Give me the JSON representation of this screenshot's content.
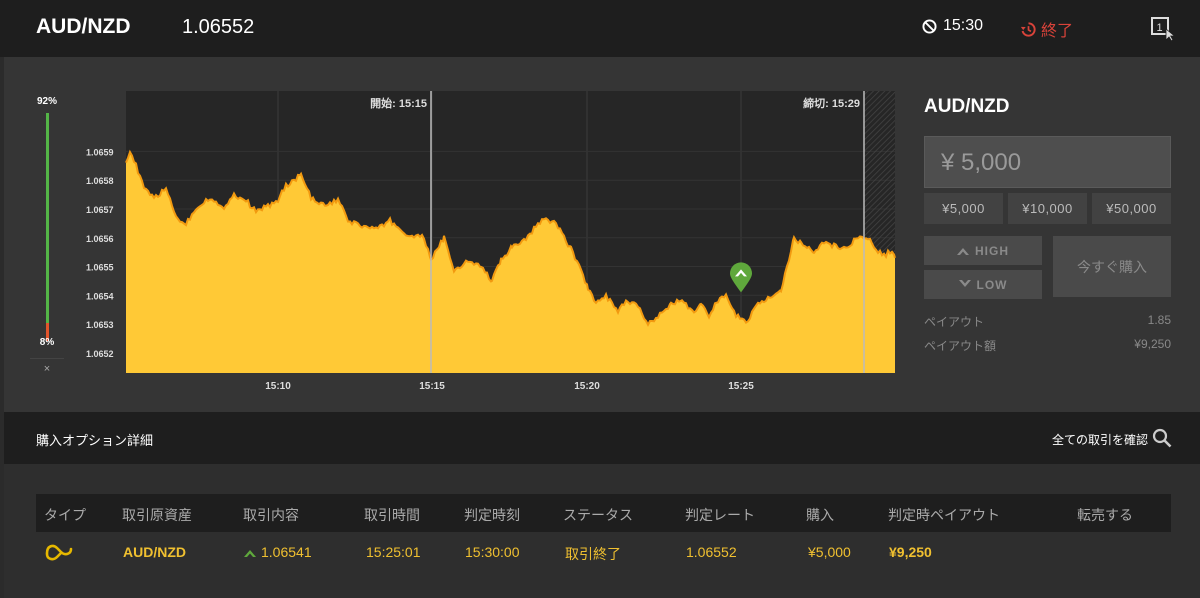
{
  "header": {
    "pair": "AUD/NZD",
    "price": "1.06552",
    "timer": "15:30",
    "status": "終了",
    "colors": {
      "status": "#d9433a"
    }
  },
  "gauge": {
    "high_pct": "92%",
    "low_pct": "8%",
    "high_value": 0.92,
    "close_label": "×"
  },
  "chart_data": {
    "type": "area",
    "x_ticks": [
      "15:10",
      "15:15",
      "15:20",
      "15:25"
    ],
    "y_ticks": [
      "1.0659",
      "1.0658",
      "1.0657",
      "1.0656",
      "1.0655",
      "1.0654",
      "1.0653",
      "1.0652"
    ],
    "ylim": [
      1.06513,
      1.06611
    ],
    "start_label": "開始: 15:15",
    "end_label": "締切: 15:29",
    "entry_value": 1.06541,
    "colors": {
      "fill": "#ffc936",
      "line": "#f29a10",
      "marker": "#5fa83c"
    }
  },
  "side": {
    "pair": "AUD/NZD",
    "amount": "¥ 5,000",
    "quick": [
      "¥5,000",
      "¥10,000",
      "¥50,000"
    ],
    "high_label": "HIGH",
    "low_label": "LOW",
    "buy_now": "今すぐ購入",
    "payout_label": "ペイアウト",
    "payout_value": "1.85",
    "payout_amount_label": "ペイアウト額",
    "payout_amount_value": "¥9,250"
  },
  "section": {
    "title": "購入オプション詳細",
    "link": "全ての取引を確認"
  },
  "table": {
    "headers": [
      "タイプ",
      "取引原資産",
      "取引内容",
      "取引時間",
      "判定時刻",
      "ステータス",
      "判定レート",
      "購入",
      "判定時ペイアウト",
      "転売する"
    ],
    "row": {
      "asset": "AUD/NZD",
      "content": "1.06541",
      "time": "15:25:01",
      "judge_time": "15:30:00",
      "status": "取引終了",
      "rate": "1.06552",
      "purchase": "¥5,000",
      "payout": "¥9,250"
    }
  }
}
